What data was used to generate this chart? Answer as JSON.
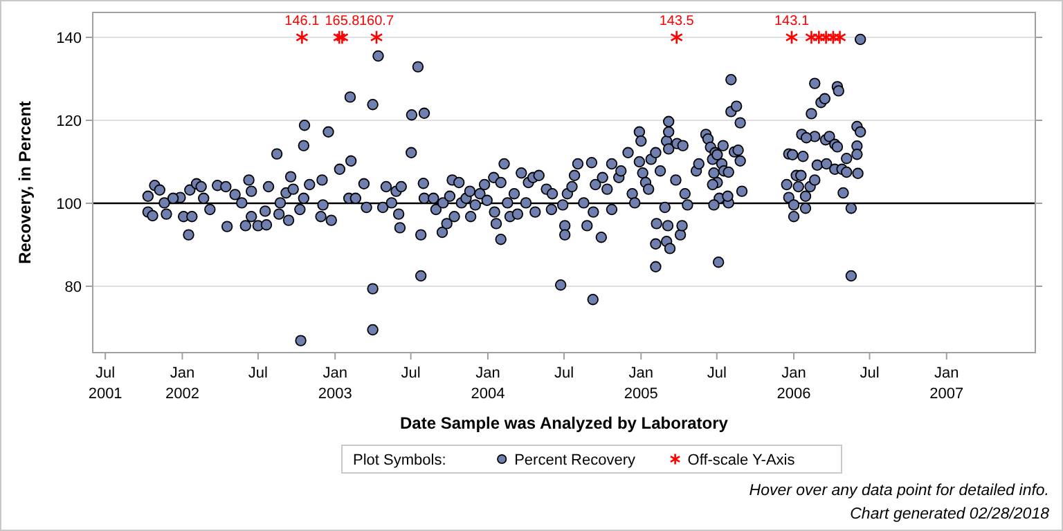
{
  "chart_data": {
    "type": "scatter",
    "xlabel": "Date Sample was Analyzed by Laboratory",
    "ylabel": "Recovery, in Percent",
    "legend_title": "Plot Symbols:",
    "legend": "bottom",
    "grid": "y",
    "xlim": [
      "2001-06-01",
      "2007-08-01"
    ],
    "ylim": [
      64,
      146
    ],
    "yticks": [
      80,
      100,
      120,
      140
    ],
    "xticks": [
      {
        "value": "2001-07-01",
        "label": "Jul\n2001"
      },
      {
        "value": "2002-01-01",
        "label": "Jan\n2002"
      },
      {
        "value": "2002-07-01",
        "label": "Jul"
      },
      {
        "value": "2003-01-01",
        "label": "Jan\n2003"
      },
      {
        "value": "2003-07-01",
        "label": "Jul"
      },
      {
        "value": "2004-01-01",
        "label": "Jan\n2004"
      },
      {
        "value": "2004-07-01",
        "label": "Jul"
      },
      {
        "value": "2005-01-01",
        "label": "Jan\n2005"
      },
      {
        "value": "2005-07-01",
        "label": "Jul"
      },
      {
        "value": "2006-01-01",
        "label": "Jan\n2006"
      },
      {
        "value": "2006-07-01",
        "label": "Jul"
      },
      {
        "value": "2007-01-01",
        "label": "Jan\n2007"
      }
    ],
    "ref_lines": [
      {
        "axis": "y",
        "value": 100,
        "color": "#000000",
        "line_style": "solid"
      }
    ],
    "annotations": [
      "Hover over any data point for detailed info.",
      "Chart generated 02/28/2018",
      {
        "text": "146.1",
        "x": "2002-10-14",
        "y": 140
      },
      {
        "text": "165.8",
        "x": "2003-01-18",
        "y": 140
      },
      {
        "text": "160.7",
        "x": "2003-04-10",
        "y": 140
      },
      {
        "text": "143.5",
        "x": "2005-03-27",
        "y": 140
      },
      {
        "text": "143.1",
        "x": "2005-12-27",
        "y": 140
      }
    ],
    "series": [
      {
        "name": "Percent Recovery",
        "color": "#6f7fb0",
        "marker": "circle",
        "x": [
          "2001-10-11",
          "2001-10-27",
          "2001-11-08",
          "2001-11-19",
          "2001-10-11",
          "2001-10-22",
          "2001-11-24",
          "2001-12-27",
          "2001-12-10",
          "2002-01-19",
          "2002-02-04",
          "2002-02-15",
          "2002-01-04",
          "2002-01-24",
          "2002-01-16",
          "2002-02-21",
          "2002-03-08",
          "2002-03-26",
          "2002-04-15",
          "2002-04-18",
          "2002-05-07",
          "2002-05-23",
          "2002-06-09",
          "2002-06-15",
          "2002-06-01",
          "2002-06-15",
          "2002-07-01",
          "2002-07-18",
          "2002-07-21",
          "2002-07-26",
          "2002-08-15",
          "2002-08-20",
          "2002-08-23",
          "2002-09-12",
          "2002-09-17",
          "2002-09-06",
          "2002-09-23",
          "2002-10-18",
          "2002-10-20",
          "2002-11-01",
          "2002-10-09",
          "2002-10-18",
          "2002-10-11",
          "2002-12-01",
          "2002-12-03",
          "2002-11-28",
          "2002-12-16",
          "2002-12-23",
          "2003-01-12",
          "2003-02-06",
          "2003-02-08",
          "2003-02-03",
          "2003-02-19",
          "2003-03-11",
          "2003-03-17",
          "2003-04-01",
          "2003-04-01",
          "2003-04-01",
          "2003-04-14",
          "2003-04-25",
          "2003-05-03",
          "2003-05-16",
          "2003-05-27",
          "2003-06-02",
          "2003-06-05",
          "2003-06-08",
          "2003-07-03",
          "2003-07-02",
          "2003-07-18",
          "2003-08-02",
          "2003-07-31",
          "2003-08-02",
          "2003-07-25",
          "2003-07-25",
          "2003-08-24",
          "2003-08-30",
          "2003-09-16",
          "2003-09-14",
          "2003-09-25",
          "2003-10-02",
          "2003-10-08",
          "2003-10-13",
          "2003-10-24",
          "2003-10-30",
          "2003-11-10",
          "2003-11-19",
          "2003-11-21",
          "2003-12-02",
          "2003-12-13",
          "2003-12-24",
          "2003-12-30",
          "2004-01-15",
          "2004-01-17",
          "2004-01-21",
          "2004-02-01",
          "2004-02-01",
          "2004-02-09",
          "2004-02-17",
          "2004-02-23",
          "2004-03-04",
          "2004-03-12",
          "2004-03-21",
          "2004-04-01",
          "2004-04-07",
          "2004-04-18",
          "2004-04-23",
          "2004-05-02",
          "2004-05-20",
          "2004-06-01",
          "2004-06-03",
          "2004-06-23",
          "2004-06-28",
          "2004-07-03",
          "2004-07-03",
          "2004-07-09",
          "2004-07-20",
          "2004-07-26",
          "2004-08-03",
          "2004-08-17",
          "2004-08-25",
          "2004-09-05",
          "2004-09-09",
          "2004-09-14",
          "2004-09-08",
          "2004-09-28",
          "2004-10-01",
          "2004-10-12",
          "2004-10-23",
          "2004-10-23",
          "2004-11-09",
          "2004-11-14",
          "2004-12-01",
          "2004-12-11",
          "2004-12-17",
          "2004-12-28",
          "2005-01-01",
          "2004-12-28",
          "2005-01-05",
          "2005-01-12",
          "2005-01-19",
          "2005-01-25",
          "2005-02-05",
          "2005-02-05",
          "2005-02-05",
          "2005-02-07",
          "2005-02-16",
          "2005-02-27",
          "2005-03-03",
          "2005-03-06",
          "2005-03-08",
          "2005-03-08",
          "2005-03-08",
          "2005-03-03",
          "2005-03-11",
          "2005-03-25",
          "2005-03-28",
          "2005-04-05",
          "2005-04-09",
          "2005-04-11",
          "2005-04-16",
          "2005-04-22",
          "2005-05-13",
          "2005-05-19",
          "2005-06-05",
          "2005-06-10",
          "2005-06-16",
          "2005-06-27",
          "2005-07-02",
          "2005-07-05",
          "2005-06-21",
          "2005-06-24",
          "2005-06-21",
          "2005-07-02",
          "2005-07-13",
          "2005-07-18",
          "2005-07-16",
          "2005-07-07",
          "2005-06-24",
          "2005-07-29",
          "2005-07-27",
          "2005-08-04",
          "2005-08-04",
          "2005-08-17",
          "2005-08-12",
          "2005-08-21",
          "2005-08-26",
          "2005-08-30",
          "2005-08-26",
          "2005-07-29",
          "2005-12-20",
          "2005-12-29",
          "2005-12-15",
          "2005-12-20",
          "2006-01-01",
          "2006-01-01",
          "2006-01-07",
          "2006-01-18",
          "2006-01-23",
          "2006-01-12",
          "2006-01-29",
          "2006-01-29",
          "2006-02-09",
          "2006-02-20",
          "2006-02-20",
          "2006-01-20",
          "2006-01-31",
          "2006-02-12",
          "2006-02-20",
          "2006-03-07",
          "2006-03-16",
          "2006-02-26",
          "2006-03-18",
          "2006-03-20",
          "2006-03-27",
          "2006-04-09",
          "2006-04-15",
          "2006-04-15",
          "2006-04-18",
          "2006-04-09",
          "2006-04-26",
          "2006-04-29",
          "2006-05-07",
          "2006-05-07",
          "2006-05-18",
          "2006-05-18",
          "2006-06-01",
          "2006-06-09",
          "2006-06-01",
          "2006-06-01",
          "2006-06-03",
          "2006-06-09"
        ],
        "values": [
          101.7,
          104.3,
          103.2,
          100.1,
          97.9,
          97.0,
          97.4,
          101.4,
          101.2,
          103.2,
          104.7,
          104.0,
          96.8,
          96.8,
          92.4,
          101.2,
          98.5,
          104.3,
          104.0,
          94.4,
          102.1,
          100.1,
          105.6,
          102.9,
          94.6,
          96.8,
          94.6,
          98.1,
          94.8,
          104.0,
          111.9,
          97.4,
          100.1,
          95.9,
          106.4,
          102.5,
          103.4,
          113.9,
          118.8,
          104.5,
          98.5,
          101.2,
          66.9,
          105.6,
          99.6,
          96.8,
          117.2,
          95.9,
          108.2,
          125.6,
          110.2,
          101.2,
          101.2,
          104.7,
          99.0,
          123.8,
          79.4,
          69.5,
          135.5,
          99.0,
          104.0,
          100.1,
          102.9,
          97.4,
          94.1,
          104.0,
          121.3,
          112.2,
          132.9,
          121.7,
          104.8,
          101.2,
          92.4,
          82.5,
          101.2,
          98.5,
          100.1,
          93.0,
          95.1,
          101.7,
          105.6,
          96.8,
          105.0,
          100.1,
          101.2,
          102.9,
          96.8,
          99.6,
          102.3,
          104.5,
          100.7,
          106.2,
          97.9,
          95.1,
          105.0,
          91.3,
          109.5,
          100.1,
          96.8,
          102.3,
          97.4,
          107.3,
          100.1,
          105.0,
          106.2,
          97.9,
          106.7,
          103.4,
          98.5,
          102.3,
          80.3,
          99.6,
          94.6,
          92.4,
          102.3,
          104.0,
          106.7,
          109.5,
          100.1,
          94.6,
          109.8,
          97.9,
          104.5,
          76.8,
          91.8,
          106.2,
          103.4,
          98.5,
          109.5,
          106.2,
          107.8,
          112.2,
          102.3,
          100.1,
          117.2,
          115.0,
          110.0,
          107.3,
          105.0,
          103.4,
          110.6,
          112.2,
          90.2,
          84.7,
          95.1,
          107.8,
          99.0,
          115.0,
          94.6,
          117.2,
          119.7,
          113.1,
          90.8,
          89.1,
          105.6,
          114.4,
          92.4,
          94.6,
          113.9,
          102.3,
          99.6,
          107.8,
          109.5,
          116.6,
          115.5,
          113.5,
          112.2,
          105.0,
          85.8,
          110.6,
          107.3,
          104.5,
          111.7,
          109.5,
          107.8,
          113.9,
          101.2,
          99.6,
          100.1,
          101.7,
          129.8,
          122.1,
          123.4,
          112.4,
          112.8,
          110.2,
          102.9,
          119.4,
          107.5,
          111.9,
          111.7,
          104.5,
          101.4,
          96.8,
          99.6,
          106.7,
          106.7,
          111.3,
          104.0,
          101.7,
          98.8,
          104.0,
          105.6,
          116.1,
          116.6,
          115.8,
          121.6,
          128.9,
          124.3,
          125.2,
          109.2,
          115.3,
          109.5,
          116.1,
          114.2,
          113.6,
          128.1,
          127.1,
          108.2,
          108.2,
          102.5,
          110.8,
          107.5,
          98.8,
          82.5,
          118.5,
          117.2,
          113.8,
          111.8,
          107.2,
          139.5
        ]
      },
      {
        "name": "Off-scale Y-Axis",
        "color": "#ff0000",
        "marker": "cross",
        "x": [
          "2002-10-14",
          "2003-01-11",
          "2003-01-18",
          "2003-04-10",
          "2005-03-27",
          "2005-12-27",
          "2006-02-12",
          "2006-03-02",
          "2006-03-19",
          "2006-04-05",
          "2006-04-21"
        ],
        "values": [
          140,
          140,
          140,
          140,
          140,
          140,
          140,
          140,
          140,
          140,
          140
        ]
      }
    ]
  }
}
